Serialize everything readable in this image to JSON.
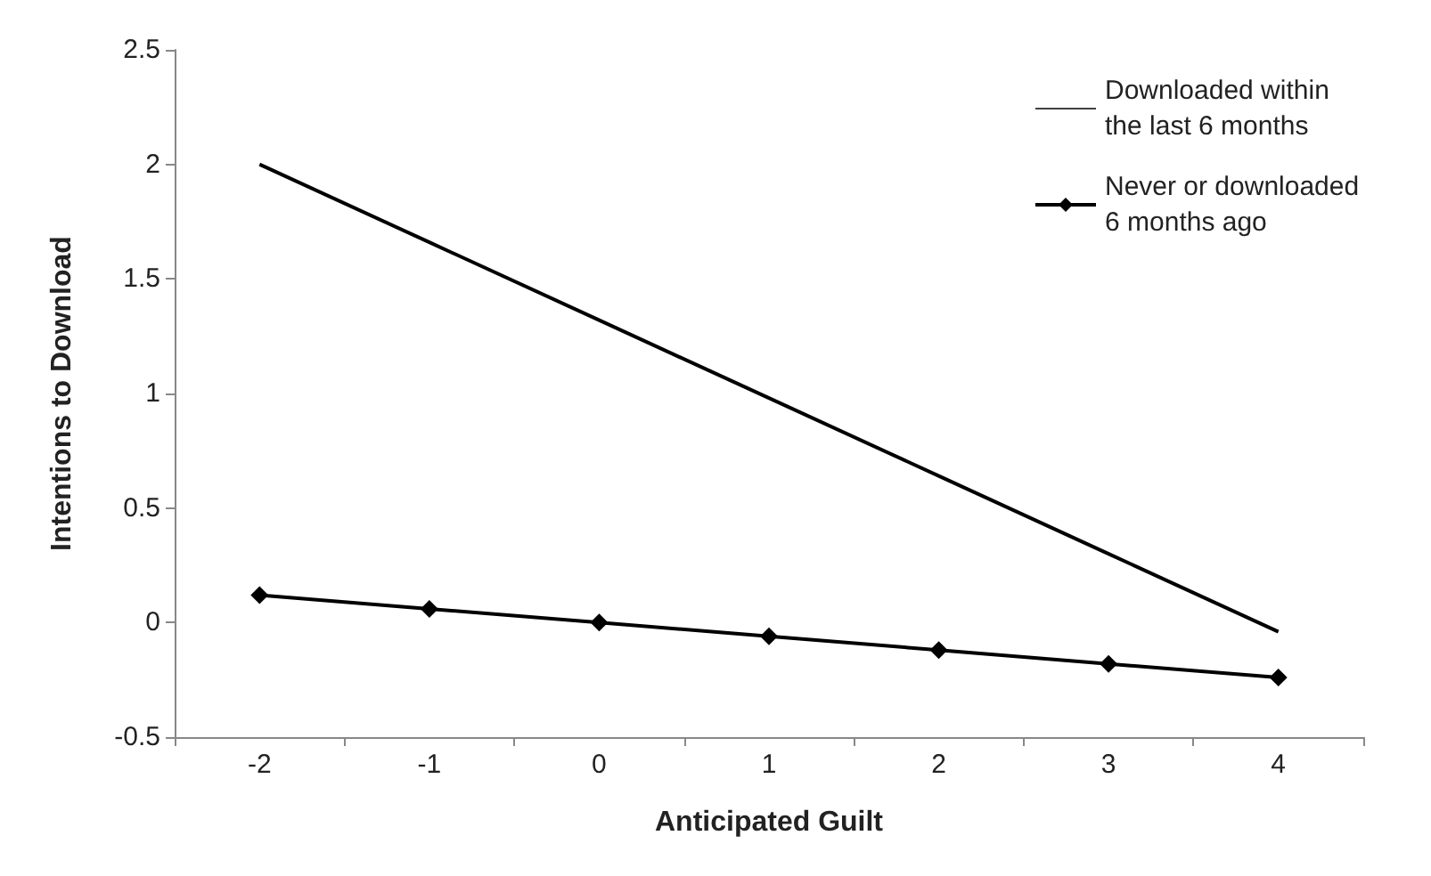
{
  "chart_data": {
    "type": "line",
    "xlabel": "Anticipated Guilt",
    "ylabel": "Intentions to Download",
    "categories": [
      "-2",
      "-1",
      "0",
      "1",
      "2",
      "3",
      "4"
    ],
    "series": [
      {
        "name": "Downloaded within the last 6 months",
        "color": "#000000",
        "marker": "none",
        "values": [
          2.0,
          1.66,
          1.32,
          0.98,
          0.64,
          0.3,
          -0.04
        ]
      },
      {
        "name": "Never or downloaded 6 months ago",
        "color": "#000000",
        "marker": "diamond",
        "values": [
          0.12,
          0.06,
          0.0,
          -0.06,
          -0.12,
          -0.18,
          -0.24
        ]
      }
    ],
    "ylim": [
      -0.5,
      2.5
    ],
    "yticks": [
      -0.5,
      0,
      0.5,
      1,
      1.5,
      2,
      2.5
    ],
    "grid": false,
    "legend": "top right",
    "line_style": "solid"
  }
}
